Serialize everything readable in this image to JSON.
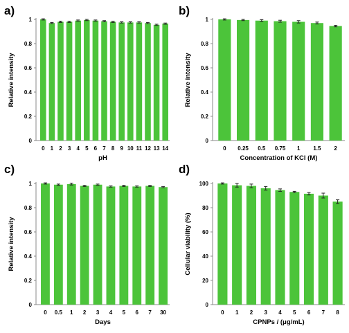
{
  "bar_color": "#4cc43a",
  "axis_color": "#8a8a8a",
  "errorbar_color": "#222222",
  "chart_data": [
    {
      "panel": "a)",
      "type": "bar",
      "xlabel": "pH",
      "ylabel": "Relative intensity",
      "categories": [
        "0",
        "1",
        "2",
        "3",
        "4",
        "5",
        "6",
        "7",
        "8",
        "9",
        "10",
        "11",
        "12",
        "13",
        "14"
      ],
      "values": [
        1.0,
        0.97,
        0.98,
        0.98,
        0.99,
        0.995,
        0.99,
        0.985,
        0.98,
        0.975,
        0.975,
        0.975,
        0.97,
        0.955,
        0.965
      ],
      "errors": [
        0.005,
        0.005,
        0.005,
        0.005,
        0.005,
        0.005,
        0.005,
        0.005,
        0.005,
        0.005,
        0.005,
        0.005,
        0.005,
        0.005,
        0.005
      ],
      "ylim": [
        0,
        1
      ],
      "yticks": [
        "0",
        "0.2",
        "0.4",
        "0.6",
        "0.8",
        "1"
      ],
      "ytick_values": [
        0,
        0.2,
        0.4,
        0.6,
        0.8,
        1
      ]
    },
    {
      "panel": "b)",
      "type": "bar",
      "xlabel": "Concentration of KCl (M)",
      "ylabel": "Relative intensity",
      "categories": [
        "0",
        "0.25",
        "0.5",
        "0.75",
        "1",
        "1.5",
        "2"
      ],
      "values": [
        1.0,
        0.995,
        0.99,
        0.985,
        0.98,
        0.97,
        0.945
      ],
      "errors": [
        0.005,
        0.005,
        0.008,
        0.008,
        0.01,
        0.008,
        0.006
      ],
      "ylim": [
        0,
        1
      ],
      "yticks": [
        "0",
        "0.2",
        "0.4",
        "0.6",
        "0.8",
        "1"
      ],
      "ytick_values": [
        0,
        0.2,
        0.4,
        0.6,
        0.8,
        1
      ]
    },
    {
      "panel": "c)",
      "type": "bar",
      "xlabel": "Days",
      "ylabel": "Relative intensity",
      "categories": [
        "0",
        "0.5",
        "1",
        "2",
        "3",
        "4",
        "5",
        "6",
        "7",
        "30"
      ],
      "values": [
        1.0,
        0.99,
        0.995,
        0.98,
        0.99,
        0.975,
        0.98,
        0.975,
        0.98,
        0.97
      ],
      "errors": [
        0.005,
        0.005,
        0.008,
        0.005,
        0.005,
        0.005,
        0.005,
        0.005,
        0.005,
        0.005
      ],
      "ylim": [
        0,
        1
      ],
      "yticks": [
        "0",
        "0.2",
        "0.4",
        "0.6",
        "0.8",
        "1"
      ],
      "ytick_values": [
        0,
        0.2,
        0.4,
        0.6,
        0.8,
        1
      ]
    },
    {
      "panel": "d)",
      "type": "bar",
      "xlabel": "CPNPs / (μg/mL)",
      "ylabel": "Cellular viability (%)",
      "categories": [
        "0",
        "1",
        "2",
        "3",
        "4",
        "5",
        "6",
        "7",
        "8"
      ],
      "values": [
        100,
        98.5,
        98,
        96,
        94.5,
        93,
        91.5,
        90,
        85
      ],
      "errors": [
        0.5,
        1.5,
        1.5,
        1.5,
        1.0,
        0.5,
        1.0,
        2.0,
        1.5
      ],
      "ylim": [
        0,
        100
      ],
      "yticks": [
        "0",
        "20",
        "40",
        "60",
        "80",
        "100"
      ],
      "ytick_values": [
        0,
        20,
        40,
        60,
        80,
        100
      ]
    }
  ]
}
